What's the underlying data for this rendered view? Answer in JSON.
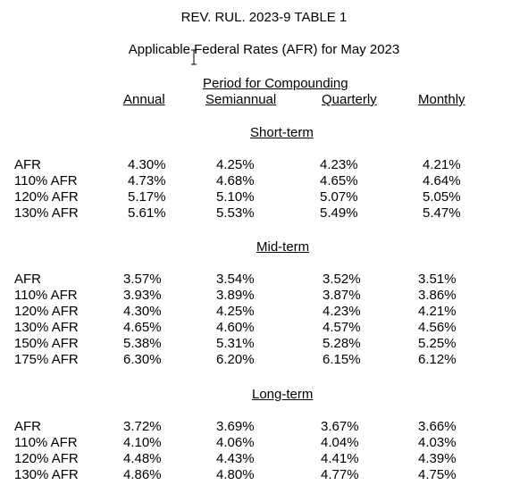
{
  "title": "REV. RUL. 2023-9 TABLE 1",
  "subtitle": "Applicable Federal Rates (AFR) for May 2023",
  "period_header": "Period for Compounding",
  "columns": [
    "Annual",
    "Semiannual",
    "Quarterly",
    "Monthly"
  ],
  "sections": [
    {
      "heading": "Short-term",
      "rows": [
        {
          "label": "AFR",
          "values": [
            "4.30%",
            "4.25%",
            "4.23%",
            "4.21%"
          ]
        },
        {
          "label": "110% AFR",
          "values": [
            "4.73%",
            "4.68%",
            "4.65%",
            "4.64%"
          ]
        },
        {
          "label": "120% AFR",
          "values": [
            "5.17%",
            "5.10%",
            "5.07%",
            "5.05%"
          ]
        },
        {
          "label": "130% AFR",
          "values": [
            "5.61%",
            "5.53%",
            "5.49%",
            "5.47%"
          ]
        }
      ]
    },
    {
      "heading": "Mid-term",
      "rows": [
        {
          "label": "AFR",
          "values": [
            "3.57%",
            "3.54%",
            "3.52%",
            "3.51%"
          ]
        },
        {
          "label": "110% AFR",
          "values": [
            "3.93%",
            "3.89%",
            "3.87%",
            "3.86%"
          ]
        },
        {
          "label": "120% AFR",
          "values": [
            "4.30%",
            "4.25%",
            "4.23%",
            "4.21%"
          ]
        },
        {
          "label": "130% AFR",
          "values": [
            "4.65%",
            "4.60%",
            "4.57%",
            "4.56%"
          ]
        },
        {
          "label": "150% AFR",
          "values": [
            "5.38%",
            "5.31%",
            "5.28%",
            "5.25%"
          ]
        },
        {
          "label": "175% AFR",
          "values": [
            "6.30%",
            "6.20%",
            "6.15%",
            "6.12%"
          ]
        }
      ]
    },
    {
      "heading": "Long-term",
      "rows": [
        {
          "label": "AFR",
          "values": [
            "3.72%",
            "3.69%",
            "3.67%",
            "3.66%"
          ]
        },
        {
          "label": "110% AFR",
          "values": [
            "4.10%",
            "4.06%",
            "4.04%",
            "4.03%"
          ]
        },
        {
          "label": "120% AFR",
          "values": [
            "4.48%",
            "4.43%",
            "4.41%",
            "4.39%"
          ]
        },
        {
          "label": "130% AFR",
          "values": [
            "4.86%",
            "4.80%",
            "4.77%",
            "4.75%"
          ]
        }
      ]
    }
  ]
}
